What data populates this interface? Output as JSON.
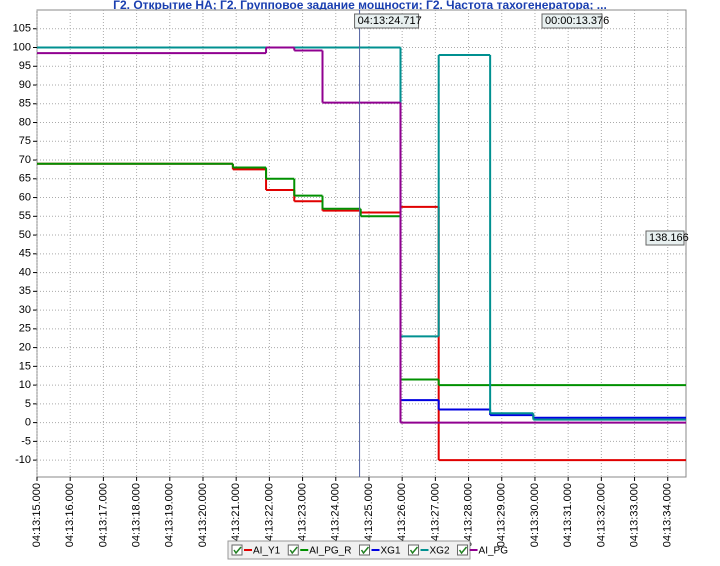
{
  "chart_data": {
    "type": "step-line",
    "title": "Г2. Открытие НА; Г2. Групповое задание мощности; Г2. Частота тахогенератора; ...",
    "xlim": [
      15,
      34.55
    ],
    "ylim": [
      -14.5,
      110
    ],
    "xticks": [
      {
        "value": 15,
        "label": "04:13:15.000"
      },
      {
        "value": 16,
        "label": "04:13:16.000"
      },
      {
        "value": 17,
        "label": "04:13:17.000"
      },
      {
        "value": 18,
        "label": "04:13:18.000"
      },
      {
        "value": 19,
        "label": "04:13:19.000"
      },
      {
        "value": 20,
        "label": "04:13:20.000"
      },
      {
        "value": 21,
        "label": "04:13:21.000"
      },
      {
        "value": 22,
        "label": "04:13:22.000"
      },
      {
        "value": 23,
        "label": "04:13:23.000"
      },
      {
        "value": 24,
        "label": "04:13:24.000"
      },
      {
        "value": 25,
        "label": "04:13:25.000"
      },
      {
        "value": 26,
        "label": "04:13:26.000"
      },
      {
        "value": 27,
        "label": "04:13:27.000"
      },
      {
        "value": 28,
        "label": "04:13:28.000"
      },
      {
        "value": 29,
        "label": "04:13:29.000"
      },
      {
        "value": 30,
        "label": "04:13:30.000"
      },
      {
        "value": 31,
        "label": "04:13:31.000"
      },
      {
        "value": 32,
        "label": "04:13:32.000"
      },
      {
        "value": 33,
        "label": "04:13:33.000"
      },
      {
        "value": 34,
        "label": "04:13:34.000"
      }
    ],
    "yticks": [
      -10,
      -5,
      0,
      5,
      10,
      15,
      20,
      25,
      30,
      35,
      40,
      45,
      50,
      55,
      60,
      65,
      70,
      75,
      80,
      85,
      90,
      95,
      100,
      105
    ],
    "grid": true,
    "cursor": {
      "value": 24.717,
      "label": "04:13:24.717"
    },
    "annotations": [
      "00:00:13.376",
      "138.166"
    ],
    "series": [
      {
        "name": "AI_Y1",
        "color": "#e00000",
        "x": [
          15,
          20.9,
          21.9,
          22.75,
          23.6,
          24.75,
          25.95,
          27.1
        ],
        "values": [
          69,
          67.5,
          62,
          59,
          56.5,
          56,
          57.5,
          -10
        ]
      },
      {
        "name": "AI_PG_R",
        "color": "#009000",
        "x": [
          15,
          20.9,
          21.9,
          22.75,
          23.6,
          24.75,
          25.95,
          27.1
        ],
        "values": [
          69,
          68,
          65,
          60.5,
          57,
          55,
          11.5,
          10
        ]
      },
      {
        "name": "XG1",
        "color": "#0000e0",
        "x": [
          15,
          25.95,
          27.1,
          28.65,
          29.95
        ],
        "values": [
          100,
          6,
          3.5,
          2,
          1.3
        ]
      },
      {
        "name": "XG2",
        "color": "#009090",
        "x": [
          15,
          25.95,
          27.1,
          28.65,
          29.95
        ],
        "values": [
          100,
          23,
          98,
          2.5,
          0.8
        ]
      },
      {
        "name": "AI_PG",
        "color": "#900090",
        "x": [
          15,
          21.9,
          22.75,
          23.6,
          25.95
        ],
        "values": [
          98.5,
          100,
          99.2,
          85.3,
          0
        ]
      }
    ]
  }
}
